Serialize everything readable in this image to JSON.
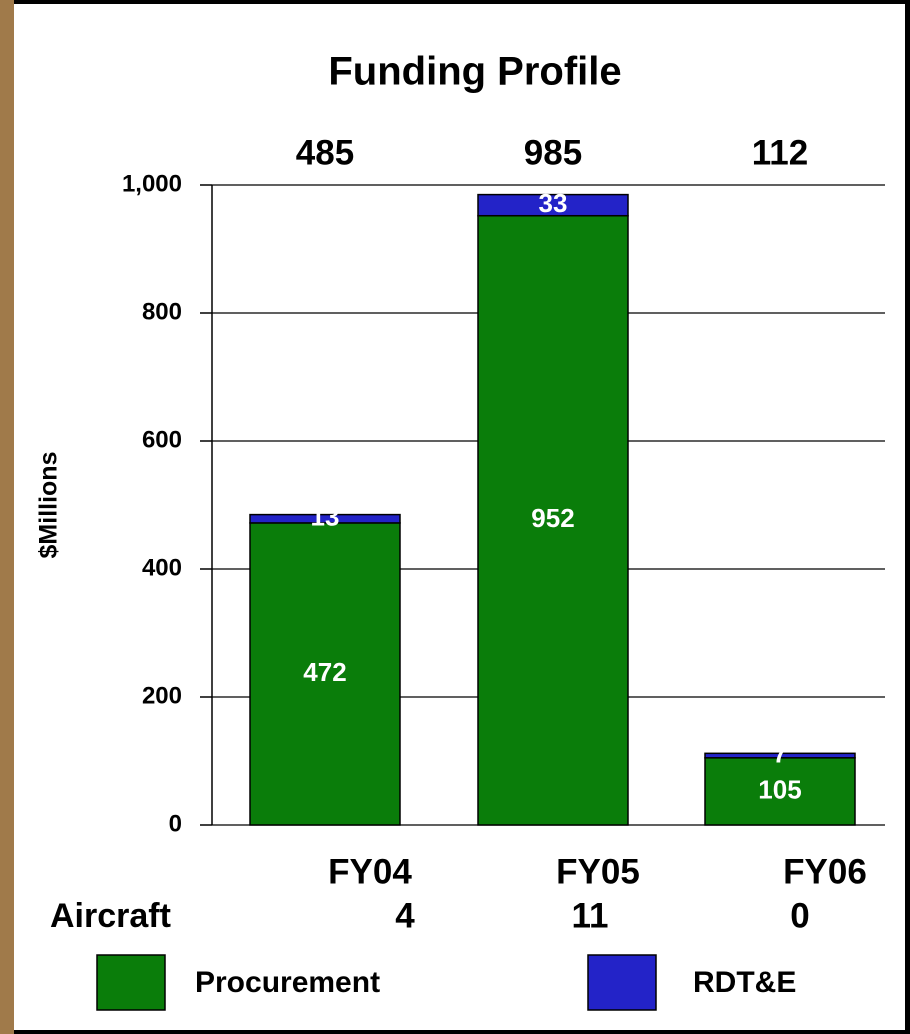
{
  "chart_data": {
    "type": "stacked-bar",
    "title": "Funding Profile",
    "y_label": "$Millions",
    "categories": [
      "FY04",
      "FY05",
      "FY06"
    ],
    "series": [
      {
        "name": "Procurement",
        "color": "#0a7d0a",
        "values": [
          472,
          952,
          105
        ]
      },
      {
        "name": "RDT&E",
        "color": "#2323c8",
        "values": [
          13,
          33,
          7
        ]
      }
    ],
    "totals": [
      485,
      985,
      112
    ],
    "row_label": "Aircraft",
    "aircraft": [
      4,
      11,
      0
    ],
    "ylim": [
      0,
      1000
    ],
    "yticks": [
      0,
      200,
      400,
      600,
      800,
      {
        "value": 1000,
        "label": "1,000"
      }
    ],
    "grid": true,
    "legend": "bottom"
  }
}
